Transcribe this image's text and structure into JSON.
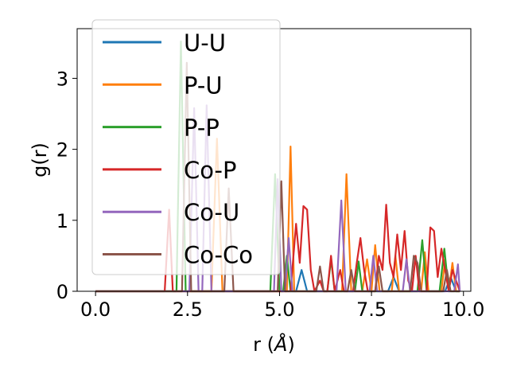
{
  "chart_data": {
    "type": "line",
    "title": "",
    "xlabel": "r (",
    "xlabel_unit": "Å",
    "xlabel_close": ")",
    "ylabel": "g(r)",
    "xlim": [
      -0.5,
      10.2
    ],
    "ylim": [
      0,
      3.7
    ],
    "xticks": [
      0.0,
      2.5,
      5.0,
      7.5,
      10.0
    ],
    "xtick_labels": [
      "0.0",
      "2.5",
      "5.0",
      "7.5",
      "10.0"
    ],
    "yticks": [
      0,
      1,
      2,
      3
    ],
    "ytick_labels": [
      "0",
      "1",
      "2",
      "3"
    ],
    "grid": false,
    "legend_position": "upper-left",
    "series": [
      {
        "name": "U-U",
        "color": "#1f77b4",
        "points": [
          [
            0,
            0
          ],
          [
            5.45,
            0
          ],
          [
            5.6,
            0.3
          ],
          [
            5.75,
            0
          ],
          [
            7.95,
            0
          ],
          [
            8.1,
            0.2
          ],
          [
            8.25,
            0
          ],
          [
            9.5,
            0
          ],
          [
            9.65,
            0.2
          ],
          [
            9.8,
            0
          ],
          [
            9.9,
            0
          ]
        ]
      },
      {
        "name": "P-U",
        "color": "#ff7f0e",
        "points": [
          [
            0,
            0
          ],
          [
            3.15,
            0
          ],
          [
            3.3,
            2.15
          ],
          [
            3.45,
            0
          ],
          [
            5.2,
            0
          ],
          [
            5.3,
            2.04
          ],
          [
            5.4,
            0
          ],
          [
            6.7,
            0
          ],
          [
            6.82,
            1.65
          ],
          [
            6.95,
            0
          ],
          [
            7.25,
            0
          ],
          [
            7.38,
            0.45
          ],
          [
            7.5,
            0
          ],
          [
            7.6,
            0.65
          ],
          [
            7.72,
            0
          ],
          [
            8.05,
            0
          ],
          [
            8.15,
            0.5
          ],
          [
            8.25,
            0
          ],
          [
            8.85,
            0
          ],
          [
            8.95,
            0.55
          ],
          [
            9.05,
            0
          ],
          [
            9.4,
            0
          ],
          [
            9.5,
            0.45
          ],
          [
            9.6,
            0
          ],
          [
            9.7,
            0.4
          ],
          [
            9.8,
            0
          ],
          [
            9.9,
            0
          ]
        ]
      },
      {
        "name": "P-P",
        "color": "#2ca02c",
        "points": [
          [
            0,
            0
          ],
          [
            2.2,
            0
          ],
          [
            2.32,
            3.52
          ],
          [
            2.45,
            0
          ],
          [
            4.75,
            0
          ],
          [
            4.88,
            1.65
          ],
          [
            5.0,
            0
          ],
          [
            5.1,
            0
          ],
          [
            5.2,
            0.5
          ],
          [
            5.3,
            0
          ],
          [
            6.3,
            0
          ],
          [
            6.4,
            0.45
          ],
          [
            6.5,
            0
          ],
          [
            7.05,
            0
          ],
          [
            7.15,
            0.42
          ],
          [
            7.25,
            0
          ],
          [
            8.75,
            0
          ],
          [
            8.88,
            0.72
          ],
          [
            9.0,
            0
          ],
          [
            9.35,
            0
          ],
          [
            9.48,
            0.6
          ],
          [
            9.6,
            0
          ],
          [
            9.9,
            0
          ]
        ]
      },
      {
        "name": "Co-P",
        "color": "#d62728",
        "points": [
          [
            0,
            0
          ],
          [
            1.88,
            0
          ],
          [
            2.0,
            1.15
          ],
          [
            2.1,
            0
          ],
          [
            5.3,
            0
          ],
          [
            5.45,
            0.95
          ],
          [
            5.55,
            0.4
          ],
          [
            5.65,
            1.2
          ],
          [
            5.75,
            1.15
          ],
          [
            5.85,
            0.3
          ],
          [
            5.95,
            0
          ],
          [
            6.1,
            0.15
          ],
          [
            6.2,
            0
          ],
          [
            6.3,
            0
          ],
          [
            6.4,
            0.5
          ],
          [
            6.5,
            0
          ],
          [
            6.65,
            0.3
          ],
          [
            6.75,
            0
          ],
          [
            7.0,
            0
          ],
          [
            7.1,
            0.4
          ],
          [
            7.2,
            0.75
          ],
          [
            7.3,
            0.3
          ],
          [
            7.4,
            0
          ],
          [
            7.6,
            0
          ],
          [
            7.7,
            0.5
          ],
          [
            7.8,
            0.3
          ],
          [
            7.9,
            1.22
          ],
          [
            8.0,
            0.4
          ],
          [
            8.1,
            0.2
          ],
          [
            8.2,
            0.8
          ],
          [
            8.3,
            0.3
          ],
          [
            8.4,
            0.85
          ],
          [
            8.5,
            0.15
          ],
          [
            8.6,
            0
          ],
          [
            8.7,
            0.5
          ],
          [
            8.8,
            0
          ],
          [
            9.0,
            0
          ],
          [
            9.1,
            0.9
          ],
          [
            9.2,
            0.85
          ],
          [
            9.3,
            0.2
          ],
          [
            9.4,
            0.6
          ],
          [
            9.5,
            0.3
          ],
          [
            9.6,
            0
          ],
          [
            9.7,
            0.3
          ],
          [
            9.8,
            0.15
          ],
          [
            9.9,
            0
          ]
        ]
      },
      {
        "name": "Co-U",
        "color": "#9467bd",
        "points": [
          [
            0,
            0
          ],
          [
            2.55,
            0
          ],
          [
            2.68,
            2.58
          ],
          [
            2.8,
            0
          ],
          [
            2.9,
            0
          ],
          [
            3.02,
            2.62
          ],
          [
            3.15,
            0
          ],
          [
            4.85,
            0
          ],
          [
            4.95,
            1.58
          ],
          [
            5.05,
            0
          ],
          [
            5.15,
            0
          ],
          [
            5.25,
            0.75
          ],
          [
            5.35,
            0
          ],
          [
            6.55,
            0
          ],
          [
            6.68,
            1.28
          ],
          [
            6.8,
            0
          ],
          [
            7.45,
            0
          ],
          [
            7.55,
            0.5
          ],
          [
            7.65,
            0
          ],
          [
            8.35,
            0
          ],
          [
            8.45,
            0.45
          ],
          [
            8.55,
            0
          ],
          [
            9.75,
            0
          ],
          [
            9.85,
            0.38
          ],
          [
            9.9,
            0
          ]
        ]
      },
      {
        "name": "Co-Co",
        "color": "#8c564b",
        "points": [
          [
            0,
            0
          ],
          [
            2.35,
            0
          ],
          [
            2.48,
            3.22
          ],
          [
            2.6,
            0
          ],
          [
            3.5,
            0
          ],
          [
            3.62,
            1.45
          ],
          [
            3.75,
            0
          ],
          [
            4.95,
            0
          ],
          [
            5.05,
            1.55
          ],
          [
            5.15,
            0
          ],
          [
            6.0,
            0
          ],
          [
            6.1,
            0.35
          ],
          [
            6.2,
            0
          ],
          [
            6.85,
            0
          ],
          [
            6.95,
            0.3
          ],
          [
            7.05,
            0
          ],
          [
            7.6,
            0
          ],
          [
            7.7,
            0.35
          ],
          [
            7.8,
            0
          ],
          [
            8.55,
            0
          ],
          [
            8.65,
            0.5
          ],
          [
            8.75,
            0.4
          ],
          [
            8.85,
            0
          ],
          [
            9.45,
            0
          ],
          [
            9.55,
            0.3
          ],
          [
            9.65,
            0
          ],
          [
            9.9,
            0
          ]
        ]
      }
    ]
  }
}
